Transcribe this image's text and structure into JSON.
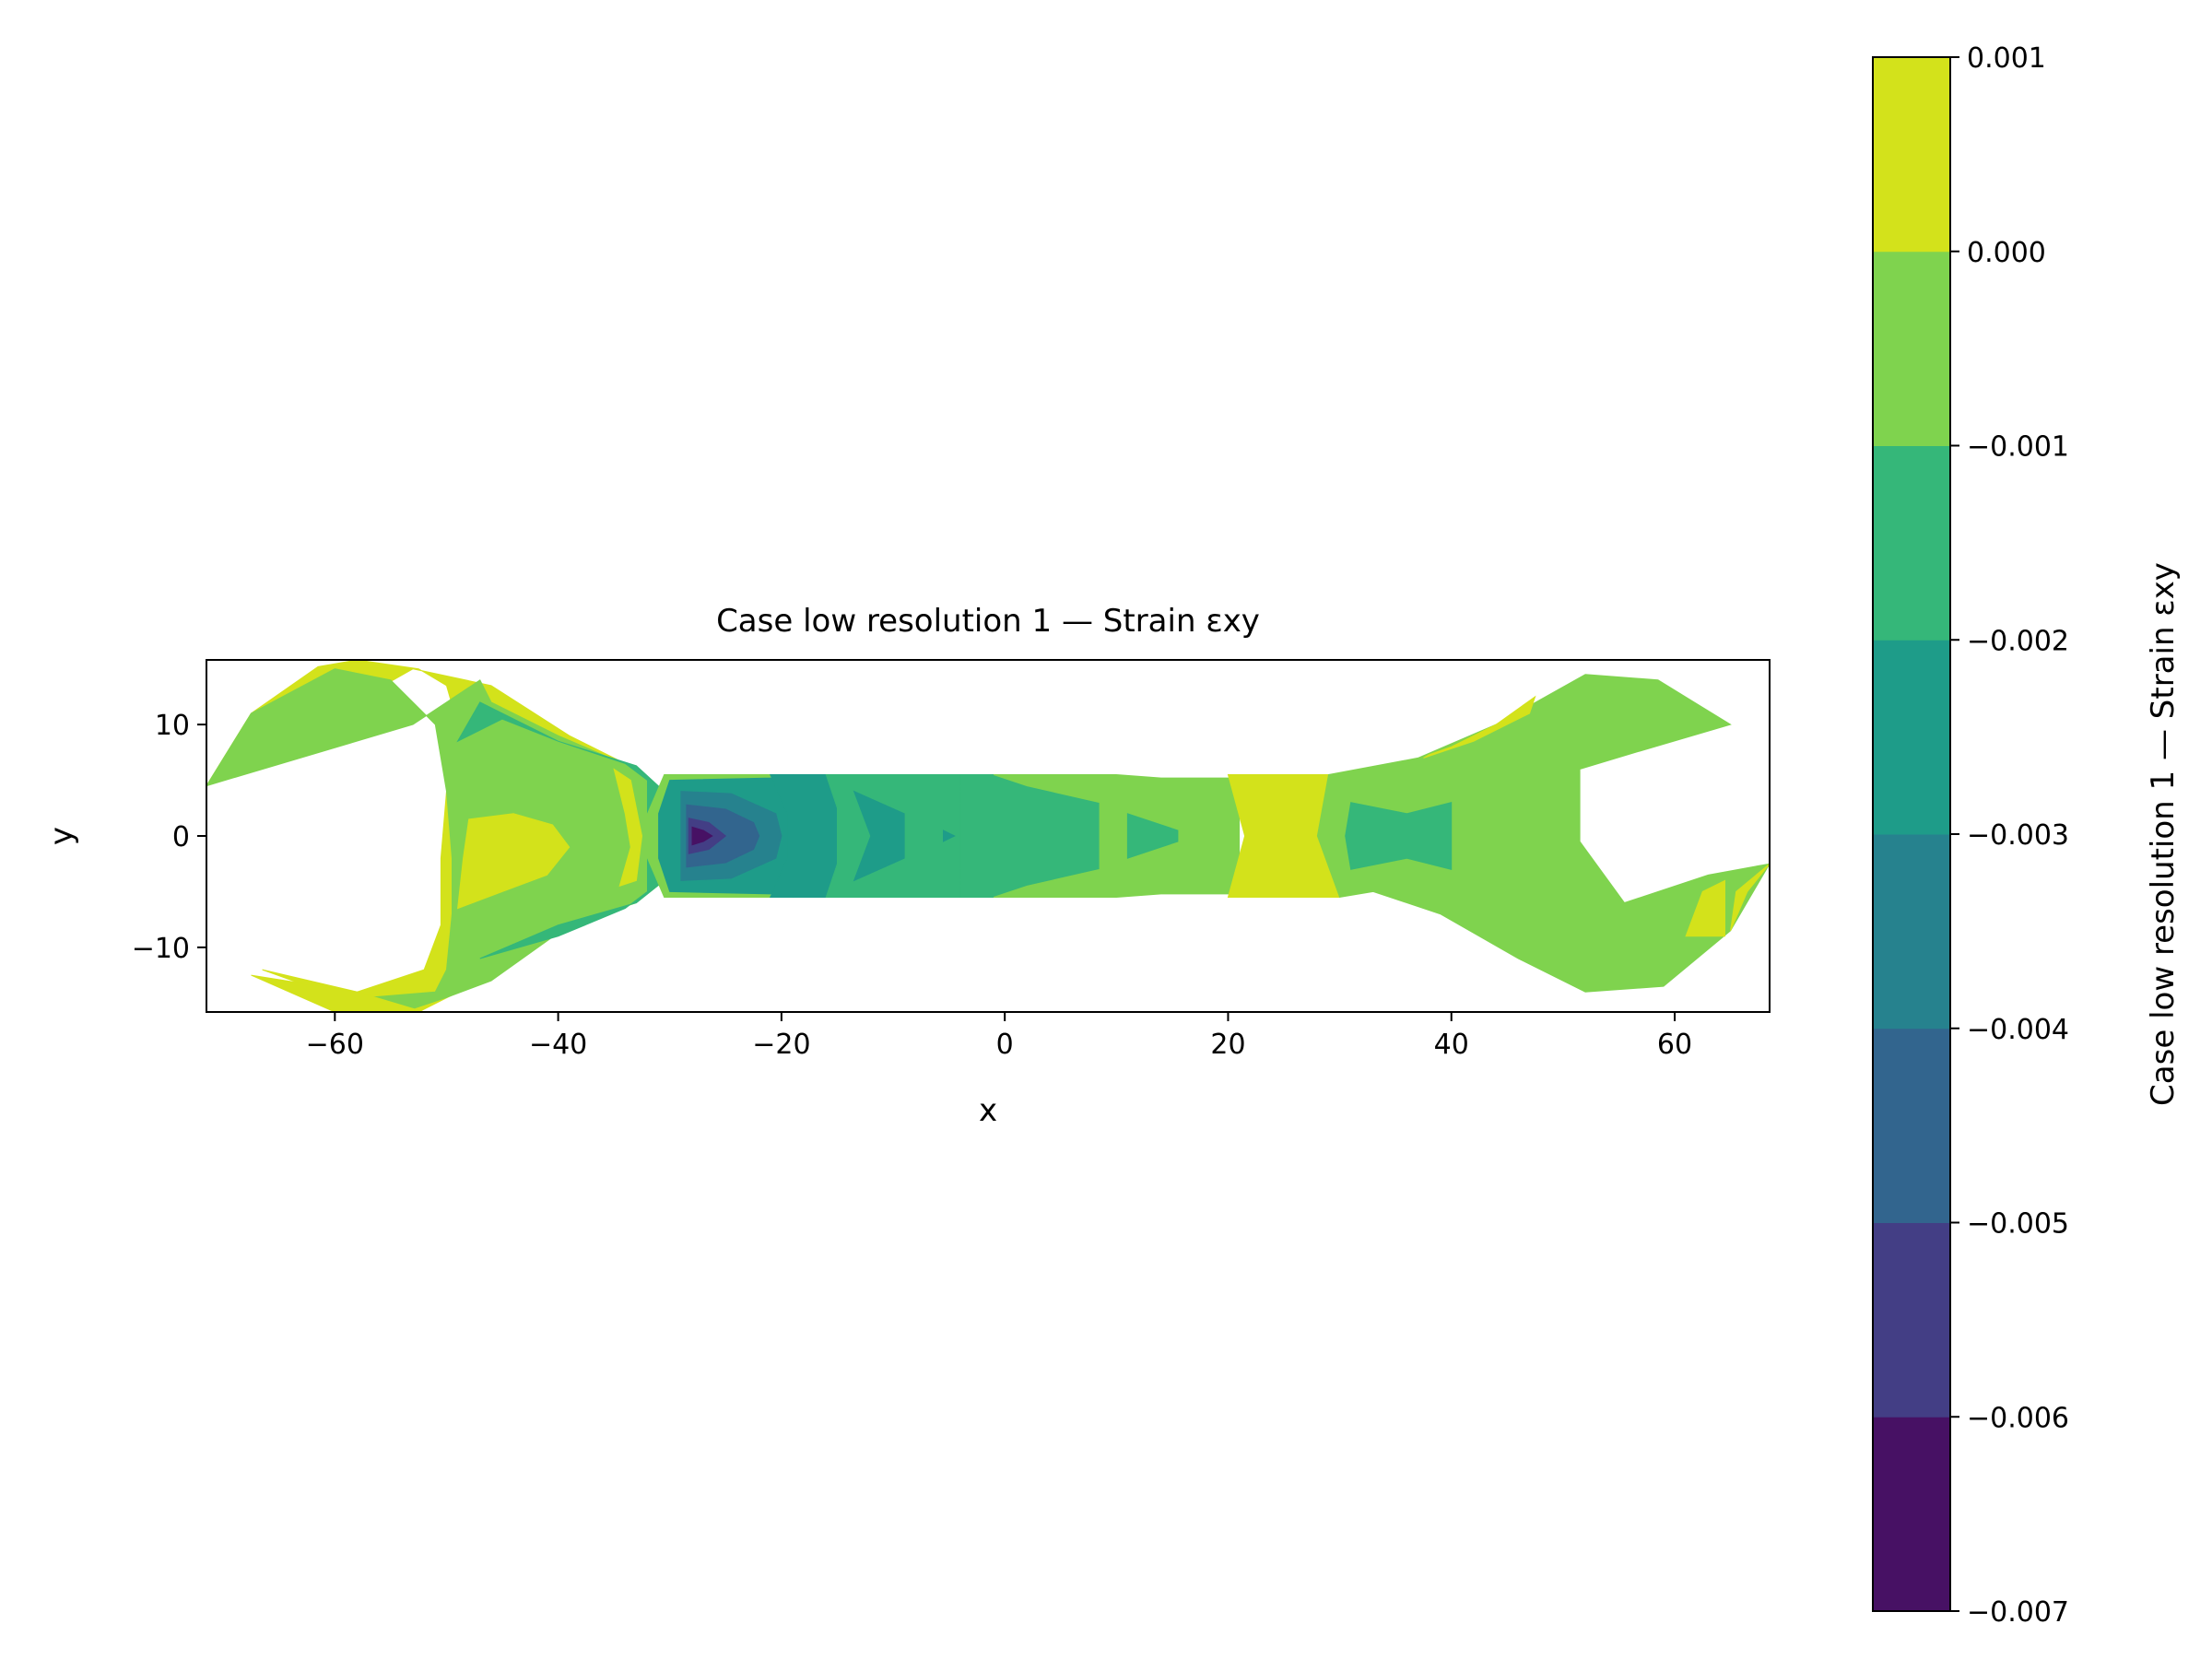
{
  "chart_data": {
    "type": "heatmap",
    "title": "Case low resolution 1 — Strain εxy",
    "xlabel": "x",
    "ylabel": "y",
    "xlim": [
      -71.5,
      68.5
    ],
    "ylim": [
      -15.8,
      15.8
    ],
    "x_ticks": [
      -60,
      -40,
      -20,
      0,
      20,
      40,
      60
    ],
    "x_tick_labels": [
      "−60",
      "−40",
      "−20",
      "0",
      "20",
      "40",
      "60"
    ],
    "y_ticks": [
      10,
      0,
      -10
    ],
    "y_tick_labels": [
      "10",
      "0",
      "−10"
    ],
    "grid": false,
    "colorbar": {
      "label": "Case low resolution 1 — Strain εxy",
      "levels": [
        -0.007,
        -0.006,
        -0.005,
        -0.004,
        -0.003,
        -0.002,
        -0.001,
        0.0,
        0.001
      ],
      "tick_labels": [
        "−0.007",
        "−0.006",
        "−0.005",
        "−0.004",
        "−0.003",
        "−0.002",
        "−0.001",
        "0.000",
        "0.001"
      ],
      "colors": [
        "#471164",
        "#433e85",
        "#32658e",
        "#26828e",
        "#1e9c89",
        "#35b779",
        "#7fd34e",
        "#d3e21b"
      ]
    }
  }
}
